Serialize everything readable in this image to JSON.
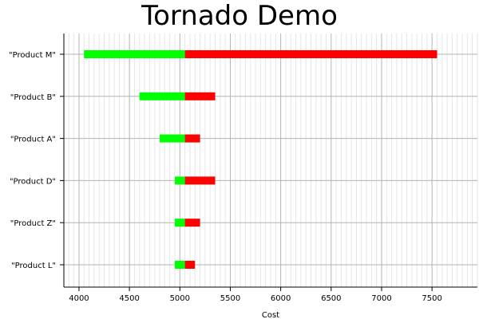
{
  "chart_data": {
    "type": "bar",
    "orientation": "horizontal",
    "style": "tornado",
    "title": "Tornado Demo",
    "xlabel": "Cost",
    "ylabel": "",
    "base_value": 5050,
    "xlim": [
      3850,
      7950
    ],
    "x_ticks": [
      4000,
      4500,
      5000,
      5500,
      6000,
      6500,
      7000,
      7500
    ],
    "grid": true,
    "categories": [
      "\"Product M\"",
      "\"Product B\"",
      "\"Product A\"",
      "\"Product D\"",
      "\"Product Z\"",
      "\"Product L\""
    ],
    "series": [
      {
        "values": [
          4050,
          4600,
          4800,
          4950,
          4950,
          4950
        ],
        "color": "#00ff00"
      },
      {
        "values": [
          7550,
          5350,
          5200,
          5350,
          5200,
          5150
        ],
        "color": "#ff0000"
      }
    ],
    "colors": {
      "low": "#00ff00",
      "high": "#ff0000"
    }
  }
}
